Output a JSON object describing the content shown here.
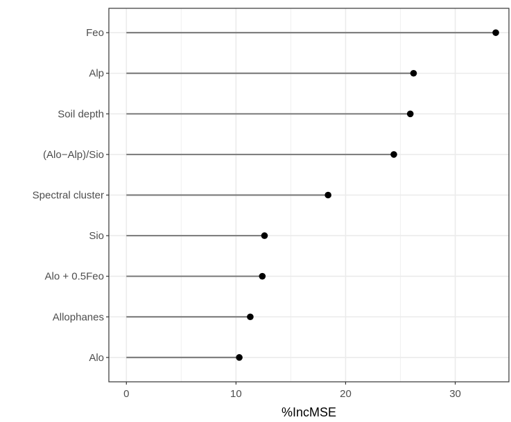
{
  "chart_data": {
    "type": "lollipop",
    "xlabel": "%IncMSE",
    "ylabel": "",
    "xlim": [
      -1.6,
      34.9
    ],
    "x_ticks": [
      0,
      10,
      20,
      30
    ],
    "x_minor_ticks": [
      5,
      15,
      25
    ],
    "grid": true,
    "categories": [
      "Feo",
      "Alp",
      "Soil depth",
      "(Alo−Alp)/Sio",
      "Spectral cluster",
      "Sio",
      "Alo + 0.5Feo",
      "Allophanes",
      "Alo"
    ],
    "values": [
      33.7,
      26.2,
      25.9,
      24.4,
      18.4,
      12.6,
      12.4,
      11.3,
      10.3
    ]
  }
}
